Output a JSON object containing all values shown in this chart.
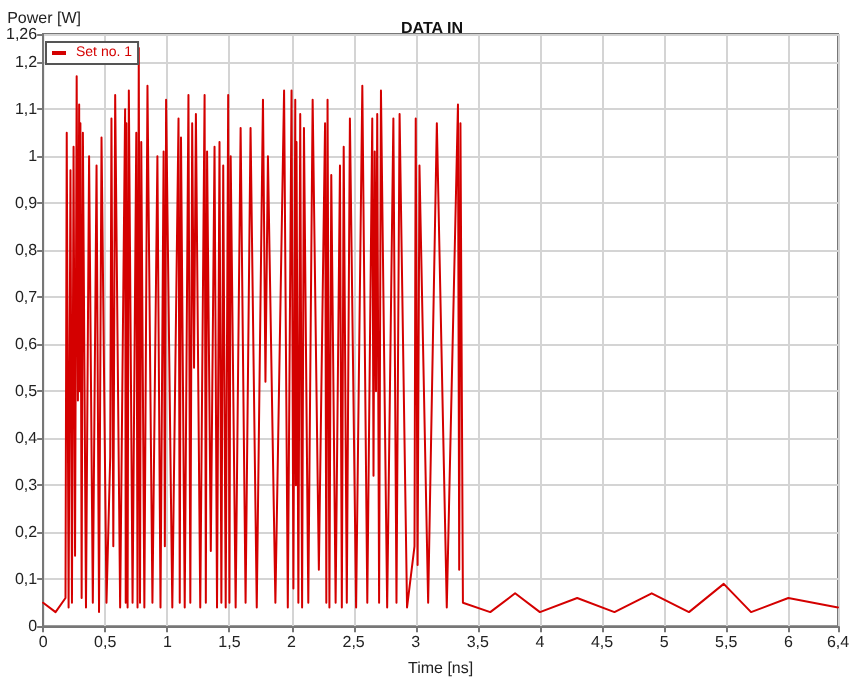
{
  "chart_data": {
    "type": "line",
    "title": "DATA IN",
    "xlabel": "Time [ns]",
    "ylabel": "Power [W]",
    "xlim": [
      0,
      6.4
    ],
    "ylim": [
      0,
      1.26
    ],
    "xticks": [
      0,
      {
        "value": 0.5,
        "label": "0,5"
      },
      1,
      {
        "value": 1.5,
        "label": "1,5"
      },
      2,
      {
        "value": 2.5,
        "label": "2,5"
      },
      3,
      {
        "value": 3.5,
        "label": "3,5"
      },
      4,
      {
        "value": 4.5,
        "label": "4,5"
      },
      5,
      {
        "value": 5.5,
        "label": "5,5"
      },
      6,
      {
        "value": 6.4,
        "label": "6,4"
      }
    ],
    "yticks": [
      0,
      {
        "value": 0.1,
        "label": "0,1"
      },
      {
        "value": 0.2,
        "label": "0,2"
      },
      {
        "value": 0.3,
        "label": "0,3"
      },
      {
        "value": 0.4,
        "label": "0,4"
      },
      {
        "value": 0.5,
        "label": "0,5"
      },
      {
        "value": 0.6,
        "label": "0,6"
      },
      {
        "value": 0.7,
        "label": "0,7"
      },
      {
        "value": 0.8,
        "label": "0,8"
      },
      {
        "value": 0.9,
        "label": "0,9"
      },
      1,
      {
        "value": 1.1,
        "label": "1,1"
      },
      {
        "value": 1.2,
        "label": "1,2"
      },
      {
        "value": 1.26,
        "label": "1,26"
      }
    ],
    "grid": true,
    "legend": "top left",
    "marker": "none",
    "line_style": "solid",
    "series": [
      {
        "name": "Set no. 1",
        "color": "#d40000",
        "x": [
          0,
          0.1,
          0.18,
          0.19,
          0.205,
          0.22,
          0.232,
          0.245,
          0.257,
          0.27,
          0.28,
          0.29,
          0.295,
          0.3,
          0.31,
          0.32,
          0.345,
          0.37,
          0.4,
          0.43,
          0.45,
          0.47,
          0.51,
          0.54,
          0.55,
          0.565,
          0.58,
          0.62,
          0.66,
          0.665,
          0.67,
          0.68,
          0.69,
          0.72,
          0.75,
          0.76,
          0.77,
          0.78,
          0.79,
          0.815,
          0.84,
          0.88,
          0.92,
          0.945,
          0.97,
          0.98,
          0.99,
          1.04,
          1.09,
          1.1,
          1.11,
          1.14,
          1.17,
          1.185,
          1.2,
          1.215,
          1.23,
          1.265,
          1.3,
          1.31,
          1.32,
          1.35,
          1.38,
          1.4,
          1.42,
          1.435,
          1.45,
          1.47,
          1.49,
          1.5,
          1.51,
          1.55,
          1.59,
          1.63,
          1.67,
          1.72,
          1.77,
          1.79,
          1.81,
          1.87,
          1.94,
          1.97,
          2.0,
          2.015,
          2.03,
          2.035,
          2.04,
          2.055,
          2.07,
          2.085,
          2.1,
          2.135,
          2.17,
          2.22,
          2.27,
          2.28,
          2.29,
          2.305,
          2.32,
          2.355,
          2.39,
          2.405,
          2.42,
          2.445,
          2.47,
          2.52,
          2.57,
          2.61,
          2.65,
          2.66,
          2.67,
          2.68,
          2.69,
          2.705,
          2.72,
          2.77,
          2.82,
          2.845,
          2.87,
          2.93,
          2.99,
          3.0,
          3.015,
          3.03,
          3.1,
          3.17,
          3.25,
          3.34,
          3.35,
          3.36,
          3.38,
          3.6,
          3.8,
          4.0,
          4.3,
          4.6,
          4.9,
          5.2,
          5.48,
          5.7,
          6.0,
          6.4
        ],
        "values": [
          0.05,
          0.03,
          0.06,
          1.05,
          0.04,
          0.97,
          0.05,
          1.02,
          0.15,
          1.17,
          0.48,
          1.11,
          0.5,
          1.07,
          0.06,
          1.05,
          0.04,
          1.0,
          0.05,
          0.98,
          0.03,
          1.04,
          0.05,
          0.36,
          1.08,
          0.17,
          1.13,
          0.04,
          1.1,
          0.05,
          1.07,
          0.04,
          1.14,
          0.05,
          1.05,
          0.04,
          1.23,
          0.05,
          1.03,
          0.04,
          1.15,
          0.05,
          1.0,
          0.04,
          1.01,
          0.17,
          1.12,
          0.04,
          1.08,
          0.05,
          1.04,
          0.04,
          1.13,
          0.05,
          1.07,
          0.55,
          1.09,
          0.04,
          1.13,
          0.05,
          1.01,
          0.16,
          1.02,
          0.04,
          1.03,
          0.05,
          0.98,
          0.04,
          1.13,
          0.05,
          1.0,
          0.04,
          1.06,
          0.05,
          1.06,
          0.04,
          1.12,
          0.52,
          1.0,
          0.05,
          1.14,
          0.04,
          1.14,
          0.08,
          1.12,
          0.3,
          1.03,
          0.05,
          1.09,
          0.04,
          1.06,
          0.05,
          1.12,
          0.12,
          1.07,
          0.05,
          1.12,
          0.04,
          0.96,
          0.05,
          0.98,
          0.04,
          1.02,
          0.05,
          1.08,
          0.04,
          1.15,
          0.05,
          1.08,
          0.32,
          1.01,
          0.5,
          1.09,
          0.05,
          1.14,
          0.04,
          1.08,
          0.05,
          1.09,
          0.04,
          0.17,
          1.08,
          0.13,
          0.98,
          0.05,
          1.07,
          0.04,
          1.11,
          0.12,
          1.07,
          0.05,
          0.03,
          0.07,
          0.03,
          0.06,
          0.03,
          0.07,
          0.03,
          0.09,
          0.03,
          0.06,
          0.04
        ]
      }
    ]
  }
}
